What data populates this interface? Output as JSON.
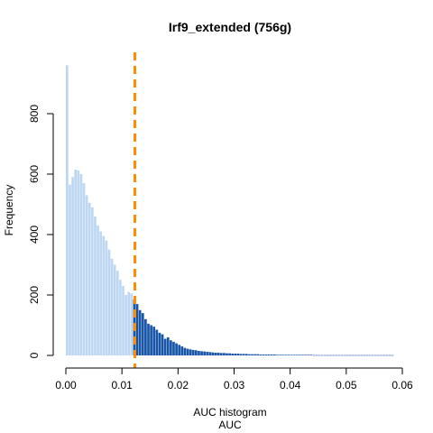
{
  "chart_data": {
    "type": "bar",
    "title": "Irf9_extended (756g)",
    "xlabel": "AUC histogram",
    "xlabel2": "AUC",
    "ylabel": "Frequency",
    "xlim": [
      0,
      0.06
    ],
    "ylim": [
      0,
      1000
    ],
    "x_ticks": [
      0,
      0.01,
      0.02,
      0.03,
      0.04,
      0.05,
      0.06
    ],
    "x_tick_labels": [
      "0.00",
      "0.01",
      "0.02",
      "0.03",
      "0.04",
      "0.05",
      "0.06"
    ],
    "y_ticks": [
      0,
      200,
      400,
      600,
      800
    ],
    "y_tick_labels": [
      "0",
      "200",
      "400",
      "600",
      "800"
    ],
    "grid": false,
    "bin_start": 0,
    "bin_width": 0.0005,
    "threshold": 0.0123,
    "colors": {
      "below_threshold": "#bdd7f3",
      "above_threshold": "#1a56a8",
      "threshold_line": "#ff8c00"
    },
    "values": [
      960,
      565,
      590,
      615,
      612,
      600,
      570,
      530,
      505,
      490,
      460,
      430,
      410,
      395,
      380,
      350,
      320,
      300,
      280,
      250,
      230,
      200,
      210,
      205,
      185,
      170,
      150,
      140,
      120,
      105,
      100,
      95,
      85,
      75,
      70,
      55,
      60,
      50,
      45,
      40,
      35,
      30,
      25,
      22,
      20,
      18,
      17,
      15,
      14,
      13,
      12,
      11,
      10,
      9,
      9,
      8,
      8,
      7,
      7,
      6,
      6,
      6,
      5,
      5,
      5,
      4,
      4,
      4,
      4,
      3,
      3,
      3,
      3,
      3,
      3,
      2,
      2,
      2,
      2,
      2,
      2,
      2,
      2,
      2,
      2,
      2,
      2,
      2,
      1,
      1,
      1,
      1,
      1,
      1,
      1,
      1,
      1,
      1,
      1,
      1,
      1,
      1,
      1,
      1,
      1,
      1,
      1,
      1,
      1,
      1,
      1,
      1,
      1,
      1,
      1,
      1,
      1
    ]
  }
}
